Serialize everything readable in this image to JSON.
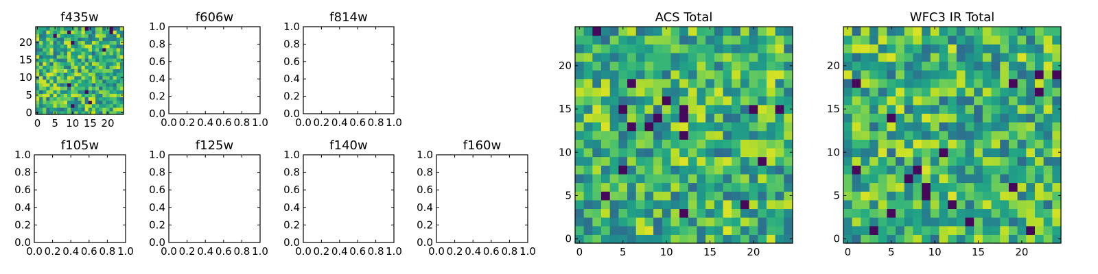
{
  "chart_data": [
    {
      "type": "heatmap",
      "title": "f435w",
      "xticks": [
        "0",
        "5",
        "10",
        "15",
        "20"
      ],
      "yticks": [
        "0",
        "5",
        "10",
        "15",
        "20"
      ],
      "grid_size": 25,
      "seed": 11,
      "colormap": "viridis"
    },
    {
      "type": "heatmap",
      "title": "f606w",
      "empty": true,
      "xticks": [
        "0.0",
        "0.2",
        "0.4",
        "0.6",
        "0.8",
        "1.0"
      ],
      "yticks": [
        "0.0",
        "0.2",
        "0.4",
        "0.6",
        "0.8",
        "1.0"
      ]
    },
    {
      "type": "heatmap",
      "title": "f814w",
      "empty": true,
      "xticks": [
        "0.0",
        "0.2",
        "0.4",
        "0.6",
        "0.8",
        "1.0"
      ],
      "yticks": [
        "0.0",
        "0.2",
        "0.4",
        "0.6",
        "0.8",
        "1.0"
      ]
    },
    {
      "type": "heatmap",
      "title": "f105w",
      "empty": true,
      "xticks": [
        "0.0",
        "0.2",
        "0.4",
        "0.6",
        "0.8",
        "1.0"
      ],
      "yticks": [
        "0.0",
        "0.2",
        "0.4",
        "0.6",
        "0.8",
        "1.0"
      ]
    },
    {
      "type": "heatmap",
      "title": "f125w",
      "empty": true,
      "xticks": [
        "0.0",
        "0.2",
        "0.4",
        "0.6",
        "0.8",
        "1.0"
      ],
      "yticks": [
        "0.0",
        "0.2",
        "0.4",
        "0.6",
        "0.8",
        "1.0"
      ]
    },
    {
      "type": "heatmap",
      "title": "f140w",
      "empty": true,
      "xticks": [
        "0.0",
        "0.2",
        "0.4",
        "0.6",
        "0.8",
        "1.0"
      ],
      "yticks": [
        "0.0",
        "0.2",
        "0.4",
        "0.6",
        "0.8",
        "1.0"
      ]
    },
    {
      "type": "heatmap",
      "title": "f160w",
      "empty": true,
      "xticks": [
        "0.0",
        "0.2",
        "0.4",
        "0.6",
        "0.8",
        "1.0"
      ],
      "yticks": [
        "0.0",
        "0.2",
        "0.4",
        "0.6",
        "0.8",
        "1.0"
      ]
    },
    {
      "type": "heatmap",
      "title": "ACS Total",
      "xticks": [
        "0",
        "5",
        "10",
        "15",
        "20"
      ],
      "yticks": [
        "0",
        "5",
        "10",
        "15",
        "20"
      ],
      "grid_size": 25,
      "seed": 23,
      "colormap": "viridis"
    },
    {
      "type": "heatmap",
      "title": "WFC3 IR Total",
      "xticks": [
        "0",
        "5",
        "10",
        "15",
        "20"
      ],
      "yticks": [
        "0",
        "5",
        "10",
        "15",
        "20"
      ],
      "grid_size": 25,
      "seed": 47,
      "colormap": "viridis"
    }
  ]
}
